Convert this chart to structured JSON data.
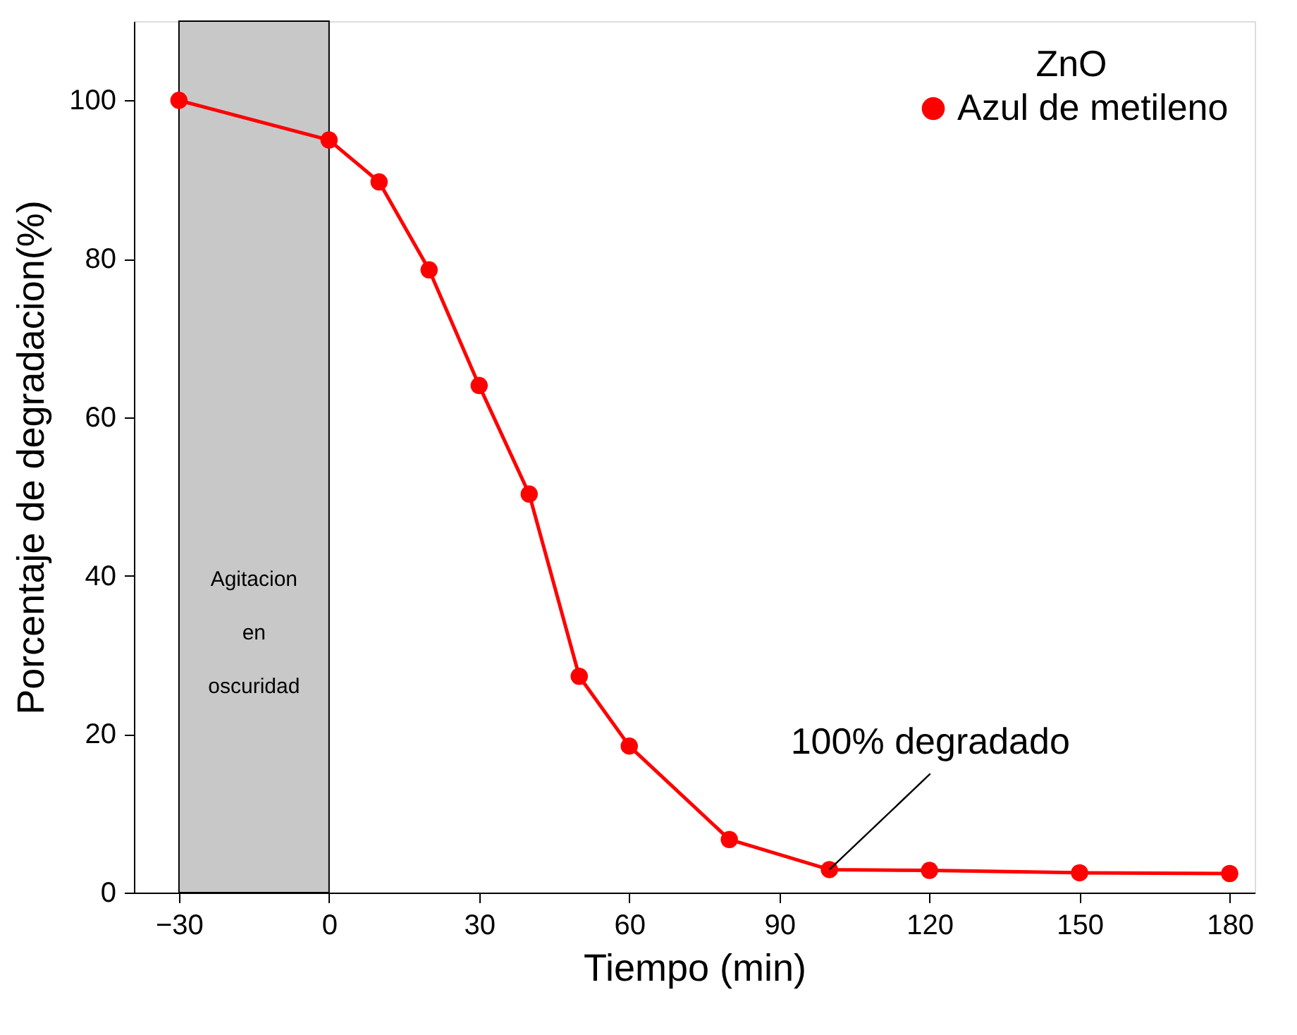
{
  "chart_data": {
    "type": "line",
    "xlabel": "Tiempo (min)",
    "ylabel": "Porcentaje de degradacion(%)",
    "legend_title": "ZnO",
    "legend": "top right",
    "marker": "circle",
    "line_style": "solid",
    "grid": false,
    "x": [
      -30,
      0,
      10,
      20,
      30,
      40,
      50,
      60,
      80,
      100,
      120,
      150,
      180
    ],
    "series": [
      {
        "name": "Azul de metileno",
        "color": "#ff0000",
        "values": [
          100,
          95,
          89.7,
          78.6,
          64,
          50.3,
          27.3,
          18.5,
          6.7,
          2.9,
          2.8,
          2.5,
          2.4
        ]
      }
    ],
    "xlim": [
      -39,
      185
    ],
    "xticks": [
      -30,
      0,
      30,
      60,
      90,
      120,
      150,
      180
    ],
    "ylim": [
      0,
      110
    ],
    "yticks": [
      0,
      20,
      40,
      60,
      80,
      100
    ],
    "bands": [
      {
        "axis": "x",
        "from": -30,
        "to": 0,
        "label": "Agitacion\nen\noscuridad",
        "color": "#c8c8c8"
      }
    ],
    "annotations": [
      {
        "text": "100% degradado",
        "x": 100,
        "y": 2.9
      }
    ]
  }
}
